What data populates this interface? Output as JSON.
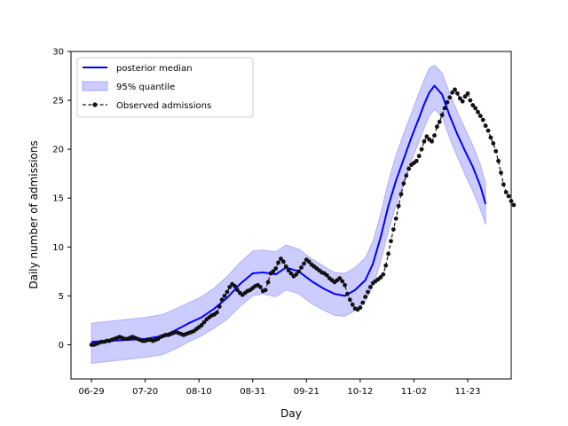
{
  "chart_data": {
    "type": "line",
    "title": "",
    "xlabel": "Day",
    "ylabel": "Daily number of admissions",
    "xlim": [
      "2020-06-21",
      "2020-12-10"
    ],
    "ylim": [
      -3.5,
      30
    ],
    "x_tick_labels": [
      "06-29",
      "07-20",
      "08-10",
      "08-31",
      "09-21",
      "10-12",
      "11-02",
      "11-23"
    ],
    "x_tick_dates": [
      "2020-06-29",
      "2020-07-20",
      "2020-08-10",
      "2020-08-31",
      "2020-09-21",
      "2020-10-12",
      "2020-11-02",
      "2020-11-23"
    ],
    "y_ticks": [
      0,
      5,
      10,
      15,
      20,
      25,
      30
    ],
    "grid": false,
    "legend_position": "top-left",
    "colors": {
      "median": "#0000ff",
      "band": "#8080ff",
      "band_edge": "#6a6aff",
      "observed": "#111111",
      "axis": "#000000"
    },
    "series": [
      {
        "name": "posterior median",
        "kind": "line",
        "x": [
          "2020-06-29",
          "2020-07-06",
          "2020-07-13",
          "2020-07-20",
          "2020-07-27",
          "2020-08-01",
          "2020-08-06",
          "2020-08-11",
          "2020-08-16",
          "2020-08-21",
          "2020-08-26",
          "2020-08-31",
          "2020-09-04",
          "2020-09-09",
          "2020-09-13",
          "2020-09-18",
          "2020-09-23",
          "2020-09-28",
          "2020-10-02",
          "2020-10-06",
          "2020-10-10",
          "2020-10-14",
          "2020-10-17",
          "2020-10-20",
          "2020-10-23",
          "2020-10-26",
          "2020-10-29",
          "2020-11-01",
          "2020-11-04",
          "2020-11-06",
          "2020-11-08",
          "2020-11-10",
          "2020-11-13",
          "2020-11-16",
          "2020-11-19",
          "2020-11-22",
          "2020-11-25",
          "2020-11-28",
          "2020-11-30"
        ],
        "y": [
          0.3,
          0.4,
          0.5,
          0.6,
          0.9,
          1.5,
          2.2,
          2.8,
          3.7,
          4.8,
          6.2,
          7.3,
          7.4,
          7.2,
          7.9,
          7.5,
          6.5,
          5.7,
          5.2,
          5.0,
          5.6,
          6.6,
          8.3,
          11.0,
          14.2,
          16.8,
          19.0,
          21.2,
          23.2,
          24.6,
          25.8,
          26.5,
          25.6,
          23.4,
          21.5,
          19.8,
          18.2,
          16.2,
          14.4
        ]
      },
      {
        "name": "95% quantile",
        "kind": "band",
        "x": [
          "2020-06-29",
          "2020-07-06",
          "2020-07-13",
          "2020-07-20",
          "2020-07-27",
          "2020-08-01",
          "2020-08-06",
          "2020-08-11",
          "2020-08-16",
          "2020-08-21",
          "2020-08-26",
          "2020-08-31",
          "2020-09-04",
          "2020-09-09",
          "2020-09-13",
          "2020-09-18",
          "2020-09-23",
          "2020-09-28",
          "2020-10-02",
          "2020-10-06",
          "2020-10-10",
          "2020-10-14",
          "2020-10-17",
          "2020-10-20",
          "2020-10-23",
          "2020-10-26",
          "2020-10-29",
          "2020-11-01",
          "2020-11-04",
          "2020-11-06",
          "2020-11-08",
          "2020-11-10",
          "2020-11-13",
          "2020-11-16",
          "2020-11-19",
          "2020-11-22",
          "2020-11-25",
          "2020-11-28",
          "2020-11-30"
        ],
        "lower": [
          -1.9,
          -1.7,
          -1.5,
          -1.3,
          -1.0,
          -0.4,
          0.3,
          0.9,
          1.7,
          2.6,
          3.9,
          5.0,
          5.2,
          4.9,
          5.6,
          5.2,
          4.2,
          3.5,
          3.0,
          2.9,
          3.5,
          4.4,
          6.0,
          8.5,
          11.6,
          14.3,
          16.6,
          18.8,
          20.8,
          22.2,
          23.4,
          24.1,
          23.3,
          21.1,
          19.2,
          17.4,
          15.7,
          13.8,
          12.3
        ],
        "upper": [
          2.2,
          2.4,
          2.6,
          2.8,
          3.1,
          3.7,
          4.3,
          4.9,
          5.8,
          7.0,
          8.4,
          9.6,
          9.7,
          9.5,
          10.2,
          9.8,
          8.8,
          8.0,
          7.4,
          7.3,
          7.9,
          8.9,
          10.6,
          13.4,
          16.7,
          19.4,
          21.6,
          23.7,
          25.8,
          27.1,
          28.3,
          28.6,
          27.8,
          25.7,
          23.8,
          22.1,
          20.4,
          18.4,
          16.5
        ]
      },
      {
        "name": "Observed admissions",
        "kind": "line-markers",
        "x_start": "2020-06-29",
        "x_step_days": 1,
        "y": [
          0.0,
          0.0,
          0.1,
          0.2,
          0.3,
          0.3,
          0.4,
          0.4,
          0.5,
          0.6,
          0.7,
          0.8,
          0.7,
          0.6,
          0.6,
          0.7,
          0.8,
          0.7,
          0.6,
          0.5,
          0.4,
          0.4,
          0.5,
          0.5,
          0.4,
          0.5,
          0.6,
          0.8,
          0.9,
          1.0,
          1.0,
          1.1,
          1.2,
          1.3,
          1.2,
          1.1,
          1.0,
          1.1,
          1.2,
          1.3,
          1.4,
          1.6,
          1.8,
          2.0,
          2.3,
          2.6,
          2.8,
          3.0,
          3.1,
          3.3,
          3.9,
          4.6,
          5.0,
          5.4,
          5.9,
          6.2,
          6.0,
          5.6,
          5.3,
          5.1,
          5.3,
          5.5,
          5.6,
          5.8,
          6.0,
          6.1,
          5.9,
          5.5,
          5.6,
          6.4,
          7.3,
          7.5,
          7.8,
          8.4,
          8.8,
          8.5,
          8.0,
          7.6,
          7.3,
          7.0,
          7.2,
          7.5,
          7.9,
          8.3,
          8.7,
          8.5,
          8.2,
          8.0,
          7.8,
          7.6,
          7.4,
          7.3,
          7.1,
          6.8,
          6.6,
          6.4,
          6.6,
          6.8,
          6.5,
          6.1,
          5.2,
          4.6,
          4.1,
          3.7,
          3.6,
          3.8,
          4.3,
          4.9,
          5.4,
          5.9,
          6.3,
          6.5,
          6.7,
          6.9,
          7.2,
          8.1,
          9.3,
          10.6,
          11.8,
          12.9,
          14.2,
          15.4,
          16.5,
          17.3,
          18.0,
          18.4,
          18.6,
          18.8,
          19.3,
          20.0,
          20.8,
          21.3,
          21.0,
          20.8,
          21.4,
          22.3,
          22.8,
          23.5,
          24.2,
          24.8,
          25.3,
          25.8,
          26.1,
          25.7,
          25.2,
          24.9,
          25.4,
          25.7,
          25.0,
          24.5,
          24.2,
          23.8,
          23.4,
          23.0,
          22.4,
          21.9,
          21.2,
          20.6,
          19.8,
          18.8,
          17.6,
          16.4,
          15.6,
          15.2,
          14.7,
          14.3
        ]
      }
    ]
  }
}
